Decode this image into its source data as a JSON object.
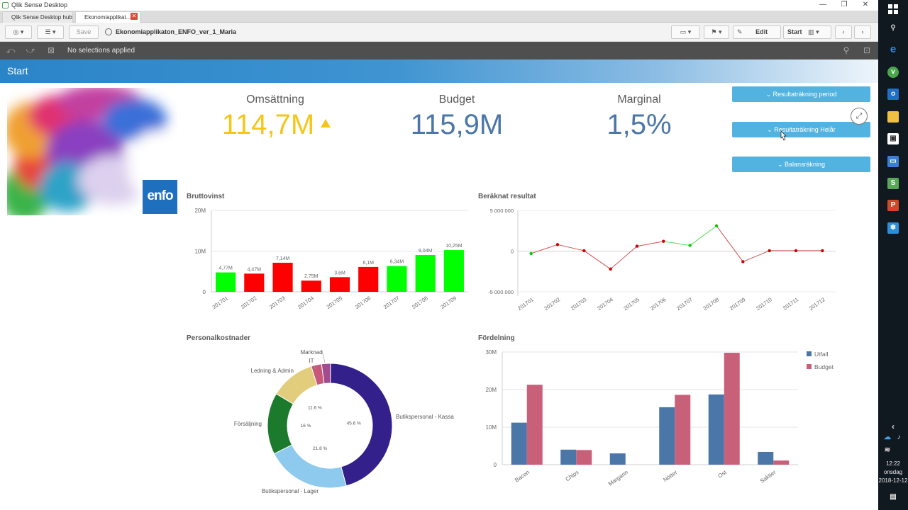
{
  "window": {
    "title": "Qlik Sense Desktop",
    "minimize": "—",
    "restore": "❐",
    "close": "✕"
  },
  "tabs": [
    {
      "label": "Qlik Sense Desktop hub"
    },
    {
      "label": "Ekonomiapplikat..."
    }
  ],
  "toolbar": {
    "save_label": "Save",
    "app_title": "Ekonomiapplikaton_ENFO_ver_1_Maria",
    "edit_label": "Edit",
    "start_label": "Start"
  },
  "selection_bar": {
    "text": "No selections applied"
  },
  "sheet": {
    "title": "Start"
  },
  "logo": {
    "text": "enfo"
  },
  "kpis": [
    {
      "label": "Omsättning",
      "value": "114,7M",
      "color": "#f5c518"
    },
    {
      "label": "Budget",
      "value": "115,9M",
      "color": "#4a76a8"
    },
    {
      "label": "Marginal",
      "value": "1,5%",
      "color": "#4a76a8"
    }
  ],
  "buttons": [
    {
      "label": "Resultaträkning period"
    },
    {
      "label": "Resultaträkning Helår"
    },
    {
      "label": "Balansräkning"
    }
  ],
  "chart_data": [
    {
      "type": "bar",
      "title": "Bruttovinst",
      "categories": [
        "201701",
        "201702",
        "201703",
        "201704",
        "201705",
        "201706",
        "201707",
        "201708",
        "201709"
      ],
      "values": [
        4.77,
        4.47,
        7.14,
        2.75,
        3.6,
        6.1,
        6.34,
        9.04,
        10.25
      ],
      "labels": [
        "4,77M",
        "4,47M",
        "7,14M",
        "2,75M",
        "3,6M",
        "6,1M",
        "6,34M",
        "9,04M",
        "10,25M"
      ],
      "colors": [
        "#00ff00",
        "#ff0000",
        "#ff0000",
        "#ff0000",
        "#ff0000",
        "#ff0000",
        "#00ff00",
        "#00ff00",
        "#00ff00"
      ],
      "yticks": [
        "0",
        "10M",
        "20M"
      ],
      "ylim": [
        0,
        20
      ]
    },
    {
      "type": "line",
      "title": "Beräknat resultat",
      "x": [
        "201701",
        "201702",
        "201703",
        "201704",
        "201705",
        "201706",
        "201707",
        "201708",
        "201709",
        "201710",
        "201711",
        "201712"
      ],
      "y": [
        -0.3,
        0.8,
        0.05,
        -2.2,
        0.6,
        1.2,
        0.7,
        3.1,
        -1.3,
        0.05,
        0.05,
        0.05
      ],
      "point_colors": [
        "#00cc00",
        "#cc0000",
        "#cc0000",
        "#cc0000",
        "#cc0000",
        "#cc0000",
        "#00cc00",
        "#00cc00",
        "#cc0000",
        "#cc0000",
        "#cc0000",
        "#cc0000"
      ],
      "yticks": [
        "5 000 000",
        "0",
        "-5 000 000"
      ],
      "ylim": [
        -5,
        5
      ]
    },
    {
      "type": "pie",
      "title": "Personalkostnader",
      "slices": [
        {
          "name": "Butikspersonal - Kassa",
          "value": 45.6,
          "pct": "45.6 %",
          "color": "#33208a"
        },
        {
          "name": "Butikspersonal - Lager",
          "value": 21.8,
          "pct": "21.8 %",
          "color": "#8ec9ee"
        },
        {
          "name": "Försäljning",
          "value": 16.0,
          "pct": "16 %",
          "color": "#1b7a2c"
        },
        {
          "name": "Ledning & Admin",
          "value": 11.6,
          "pct": "11.6 %",
          "color": "#e1cd7b"
        },
        {
          "name": "IT",
          "value": 2.7,
          "pct": "",
          "color": "#c7587a"
        },
        {
          "name": "Marknad",
          "value": 2.3,
          "pct": "",
          "color": "#a44b8f"
        }
      ]
    },
    {
      "type": "bar",
      "title": "Fördelning",
      "categories": [
        "Bacon",
        "Chips",
        "Margarin",
        "Nötter",
        "Ost",
        "Saktier"
      ],
      "series": [
        {
          "name": "Utfall",
          "color": "#4a76a8",
          "values": [
            11.2,
            4,
            3,
            15.3,
            18.7,
            3.4
          ]
        },
        {
          "name": "Budget",
          "color": "#c8607a",
          "values": [
            21.3,
            3.9,
            0,
            18.6,
            29.8,
            1.1
          ]
        }
      ],
      "yticks": [
        "0",
        "10M",
        "20M",
        "30M"
      ],
      "ylim": [
        0,
        30
      ]
    }
  ],
  "taskbar": {
    "time": "12:22",
    "day": "onsdag",
    "date": "2018-12-12"
  }
}
